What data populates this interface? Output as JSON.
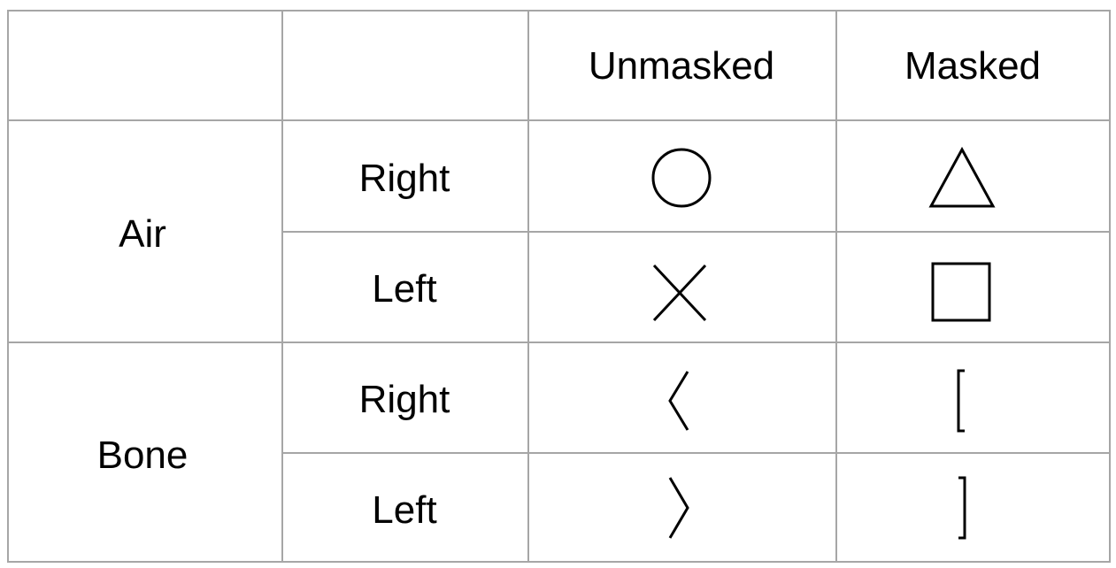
{
  "table": {
    "columns": {
      "blank1": "",
      "blank2": "",
      "unmasked": "Unmasked",
      "masked": "Masked"
    },
    "rows": [
      {
        "group": "Air",
        "side": "Right",
        "unmasked_symbol": "circle",
        "masked_symbol": "triangle"
      },
      {
        "group": "Air",
        "side": "Left",
        "unmasked_symbol": "cross",
        "masked_symbol": "square"
      },
      {
        "group": "Bone",
        "side": "Right",
        "unmasked_symbol": "left-angle-bracket",
        "masked_symbol": "left-square-bracket"
      },
      {
        "group": "Bone",
        "side": "Left",
        "unmasked_symbol": "right-angle-bracket",
        "masked_symbol": "right-square-bracket"
      }
    ],
    "groups": {
      "air": "Air",
      "bone": "Bone"
    },
    "border_color": "#a6a6a6",
    "symbol_color": "#000000"
  }
}
